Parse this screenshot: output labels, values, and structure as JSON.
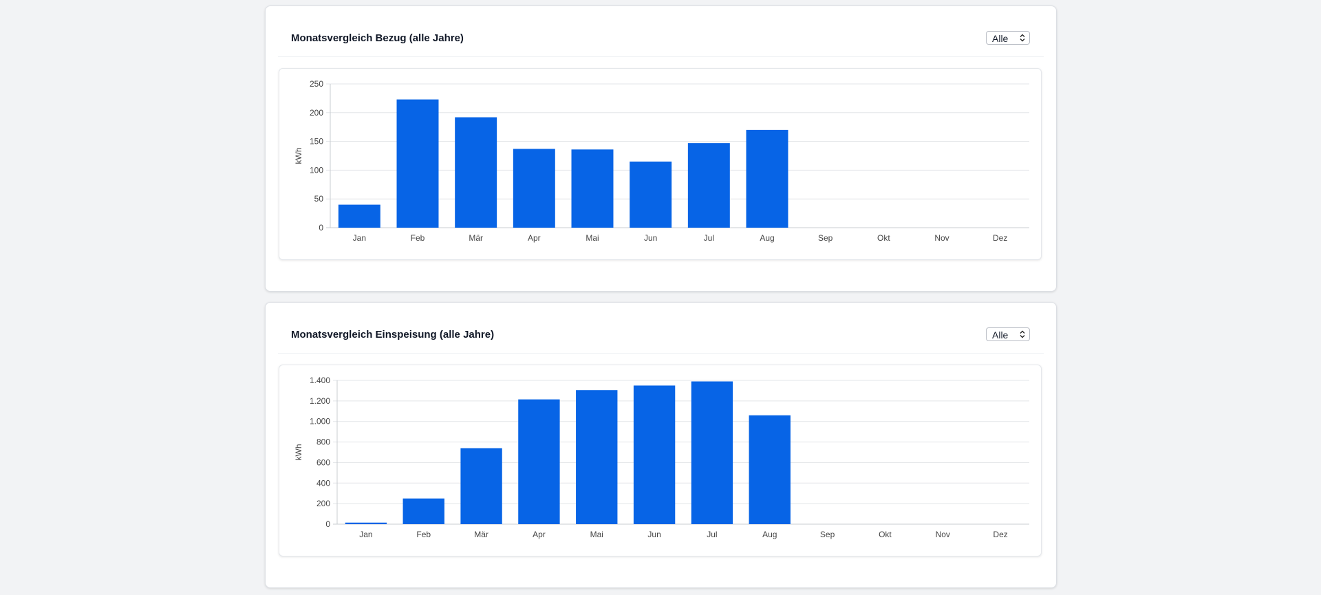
{
  "colors": {
    "bar": "#0764e6",
    "grid": "#e3e5e8",
    "axis": "#c8ccd1",
    "text": "#444444"
  },
  "cards": [
    {
      "title": "Monatsvergleich Bezug (alle Jahre)",
      "select": {
        "value": "Alle"
      }
    },
    {
      "title": "Monatsvergleich Einspeisung (alle Jahre)",
      "select": {
        "value": "Alle"
      }
    }
  ],
  "chart_data": [
    {
      "type": "bar",
      "categories": [
        "Jan",
        "Feb",
        "Mär",
        "Apr",
        "Mai",
        "Jun",
        "Jul",
        "Aug",
        "Sep",
        "Okt",
        "Nov",
        "Dez"
      ],
      "values": [
        40,
        223,
        192,
        137,
        136,
        115,
        147,
        170,
        0,
        0,
        0,
        0
      ],
      "ylabel": "kWh",
      "ylim": [
        0,
        250
      ],
      "yticks": [
        0,
        50,
        100,
        150,
        200,
        250
      ],
      "ytick_labels": [
        "0",
        "50",
        "100",
        "150",
        "200",
        "250"
      ],
      "grid": true,
      "legend": false
    },
    {
      "type": "bar",
      "categories": [
        "Jan",
        "Feb",
        "Mär",
        "Apr",
        "Mai",
        "Jun",
        "Jul",
        "Aug",
        "Sep",
        "Okt",
        "Nov",
        "Dez"
      ],
      "values": [
        15,
        250,
        740,
        1215,
        1305,
        1350,
        1390,
        1060,
        0,
        0,
        0,
        0
      ],
      "ylabel": "kWh",
      "ylim": [
        0,
        1400
      ],
      "yticks": [
        0,
        200,
        400,
        600,
        800,
        1000,
        1200,
        1400
      ],
      "ytick_labels": [
        "0",
        "200",
        "400",
        "600",
        "800",
        "1.000",
        "1.200",
        "1.400"
      ],
      "grid": true,
      "legend": false
    }
  ]
}
